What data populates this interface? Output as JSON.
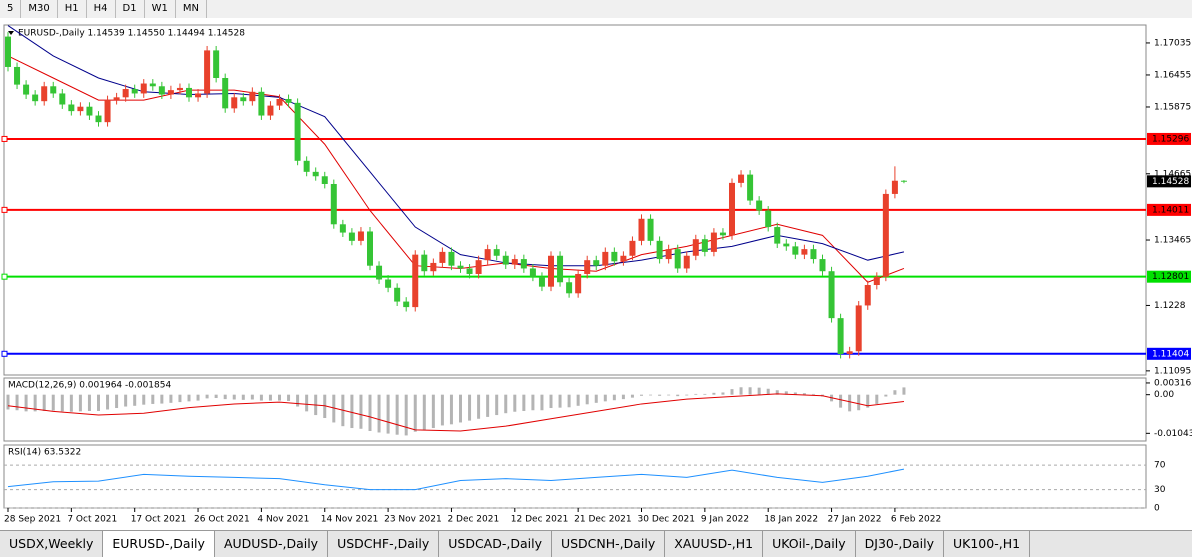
{
  "toolbar": {
    "timeframes": [
      "5",
      "M30",
      "H1",
      "H4",
      "D1",
      "W1",
      "MN"
    ]
  },
  "tabs": [
    "USDX,Weekly",
    "EURUSD-,Daily",
    "AUDUSD-,Daily",
    "USDCHF-,Daily",
    "USDCAD-,Daily",
    "USDCNH-,Daily",
    "XAUUSD-,H1",
    "UKOil-,Daily",
    "DJ30-,Daily",
    "UK100-,H1"
  ],
  "chart_data": {
    "type": "candlestick",
    "title": "EURUSD-,Daily  1.14539 1.14550 1.14494 1.14528",
    "up_color": "#e8412c",
    "down_color": "#35c435",
    "ylim": [
      1.1102,
      1.1736
    ],
    "yticks": [
      1.17035,
      1.16455,
      1.15875,
      1.14665,
      1.13465,
      1.1228,
      1.11095
    ],
    "xticks": [
      {
        "value": 0,
        "label": "28 Sep 2021"
      },
      {
        "value": 7,
        "label": "7 Oct 2021"
      },
      {
        "value": 14,
        "label": "17 Oct 2021"
      },
      {
        "value": 21,
        "label": "26 Oct 2021"
      },
      {
        "value": 28,
        "label": "4 Nov 2021"
      },
      {
        "value": 35,
        "label": "14 Nov 2021"
      },
      {
        "value": 42,
        "label": "23 Nov 2021"
      },
      {
        "value": 49,
        "label": "2 Dec 2021"
      },
      {
        "value": 56,
        "label": "12 Dec 2021"
      },
      {
        "value": 63,
        "label": "21 Dec 2021"
      },
      {
        "value": 70,
        "label": "30 Dec 2021"
      },
      {
        "value": 77,
        "label": "9 Jan 2022"
      },
      {
        "value": 84,
        "label": "18 Jan 2022"
      },
      {
        "value": 91,
        "label": "27 Jan 2022"
      },
      {
        "value": 98,
        "label": "6 Feb 2022"
      }
    ],
    "open": [
      1.1715,
      1.166,
      1.1628,
      1.161,
      1.1598,
      1.1625,
      1.1612,
      1.1592,
      1.158,
      1.1588,
      1.1572,
      1.156,
      1.16,
      1.1605,
      1.162,
      1.1612,
      1.163,
      1.1625,
      1.161,
      1.1618,
      1.1622,
      1.1605,
      1.1612,
      1.169,
      1.164,
      1.1585,
      1.1605,
      1.1598,
      1.1615,
      1.1572,
      1.159,
      1.1602,
      1.1595,
      1.149,
      1.147,
      1.1462,
      1.1448,
      1.1375,
      1.136,
      1.1345,
      1.1362,
      1.13,
      1.1275,
      1.126,
      1.1235,
      1.1225,
      1.132,
      1.129,
      1.1305,
      1.1325,
      1.13,
      1.1295,
      1.1285,
      1.131,
      1.133,
      1.1318,
      1.1302,
      1.1312,
      1.1295,
      1.128,
      1.1262,
      1.1318,
      1.127,
      1.125,
      1.1285,
      1.131,
      1.13,
      1.1325,
      1.1308,
      1.1318,
      1.1345,
      1.1385,
      1.1345,
      1.1312,
      1.133,
      1.1295,
      1.1318,
      1.1348,
      1.1325,
      1.136,
      1.1355,
      1.145,
      1.1465,
      1.1418,
      1.14,
      1.137,
      1.134,
      1.1335,
      1.132,
      1.133,
      1.1312,
      1.129,
      1.1205,
      1.114,
      1.1145,
      1.1228,
      1.1265,
      1.128,
      1.143,
      1.14539
    ],
    "high": [
      1.1723,
      1.1668,
      1.1636,
      1.1618,
      1.1633,
      1.1633,
      1.162,
      1.16,
      1.1596,
      1.1596,
      1.158,
      1.1608,
      1.1613,
      1.1628,
      1.1628,
      1.1638,
      1.1638,
      1.1633,
      1.1626,
      1.163,
      1.163,
      1.162,
      1.1698,
      1.1698,
      1.1648,
      1.1613,
      1.1613,
      1.1623,
      1.1623,
      1.1598,
      1.161,
      1.161,
      1.1603,
      1.1498,
      1.1478,
      1.147,
      1.1456,
      1.1383,
      1.1368,
      1.137,
      1.137,
      1.1308,
      1.1283,
      1.1268,
      1.1243,
      1.1328,
      1.1328,
      1.1313,
      1.1333,
      1.1333,
      1.1308,
      1.1303,
      1.1318,
      1.1338,
      1.1338,
      1.1326,
      1.132,
      1.132,
      1.1303,
      1.1288,
      1.1326,
      1.1326,
      1.1278,
      1.1293,
      1.1318,
      1.1318,
      1.1333,
      1.1333,
      1.1326,
      1.1353,
      1.1393,
      1.1393,
      1.1353,
      1.1338,
      1.1338,
      1.1326,
      1.1356,
      1.1356,
      1.1368,
      1.1368,
      1.1458,
      1.1473,
      1.1473,
      1.1426,
      1.1408,
      1.1378,
      1.1348,
      1.1343,
      1.1338,
      1.1338,
      1.132,
      1.1298,
      1.1213,
      1.1153,
      1.1236,
      1.1273,
      1.1288,
      1.1438,
      1.148,
      1.1455
    ],
    "low": [
      1.1652,
      1.162,
      1.1602,
      1.159,
      1.159,
      1.1604,
      1.1584,
      1.1572,
      1.1572,
      1.1564,
      1.1552,
      1.1552,
      1.1592,
      1.1597,
      1.1604,
      1.1604,
      1.1617,
      1.1602,
      1.1602,
      1.161,
      1.1597,
      1.1597,
      1.1604,
      1.1632,
      1.1577,
      1.1577,
      1.159,
      1.159,
      1.1564,
      1.1564,
      1.1582,
      1.1587,
      1.1482,
      1.1462,
      1.1454,
      1.144,
      1.1367,
      1.1352,
      1.1337,
      1.1337,
      1.1292,
      1.1267,
      1.1252,
      1.1227,
      1.1217,
      1.1217,
      1.1282,
      1.1282,
      1.1297,
      1.1292,
      1.1287,
      1.1277,
      1.1277,
      1.1302,
      1.131,
      1.1294,
      1.1294,
      1.1287,
      1.1272,
      1.1254,
      1.1254,
      1.1262,
      1.1242,
      1.1242,
      1.1277,
      1.1292,
      1.1292,
      1.13,
      1.13,
      1.131,
      1.1337,
      1.1337,
      1.1304,
      1.1304,
      1.1287,
      1.1287,
      1.131,
      1.1317,
      1.1317,
      1.1347,
      1.1347,
      1.1442,
      1.141,
      1.1392,
      1.1362,
      1.1332,
      1.1327,
      1.1312,
      1.1312,
      1.1304,
      1.1282,
      1.1197,
      1.1132,
      1.1132,
      1.1137,
      1.122,
      1.1257,
      1.1272,
      1.1422,
      1.14494
    ],
    "close": [
      1.166,
      1.1628,
      1.161,
      1.1598,
      1.1625,
      1.1612,
      1.1592,
      1.158,
      1.1588,
      1.1572,
      1.156,
      1.16,
      1.1605,
      1.162,
      1.1612,
      1.163,
      1.1625,
      1.161,
      1.1618,
      1.1622,
      1.1605,
      1.1612,
      1.169,
      1.164,
      1.1585,
      1.1605,
      1.1598,
      1.1615,
      1.1572,
      1.159,
      1.1602,
      1.1595,
      1.149,
      1.147,
      1.1462,
      1.1448,
      1.1375,
      1.136,
      1.1345,
      1.1362,
      1.13,
      1.1275,
      1.126,
      1.1235,
      1.1225,
      1.132,
      1.129,
      1.1305,
      1.1325,
      1.13,
      1.1295,
      1.1285,
      1.131,
      1.133,
      1.1318,
      1.1302,
      1.1312,
      1.1295,
      1.128,
      1.1262,
      1.1318,
      1.127,
      1.125,
      1.1285,
      1.131,
      1.13,
      1.1325,
      1.1308,
      1.1318,
      1.1345,
      1.1385,
      1.1345,
      1.1312,
      1.133,
      1.1295,
      1.1318,
      1.1348,
      1.1325,
      1.136,
      1.1355,
      1.145,
      1.1465,
      1.1418,
      1.14,
      1.137,
      1.134,
      1.1335,
      1.132,
      1.133,
      1.1312,
      1.129,
      1.1205,
      1.114,
      1.1145,
      1.1228,
      1.1265,
      1.128,
      1.143,
      1.14539,
      1.14528
    ],
    "levels": [
      {
        "value": 1.15296,
        "color": "#ff0000",
        "text_color": "#000000"
      },
      {
        "value": 1.14011,
        "color": "#ff0000",
        "text_color": "#000000"
      },
      {
        "value": 1.12801,
        "color": "#00e000",
        "text_color": "#000000"
      },
      {
        "value": 1.11404,
        "color": "#0000ff",
        "text_color": "#ffffff"
      }
    ],
    "moving_averages": [
      {
        "color": "#e00000",
        "x": [
          0,
          5,
          10,
          15,
          20,
          25,
          30,
          35,
          40,
          45,
          50,
          55,
          60,
          65,
          70,
          75,
          80,
          85,
          90,
          95,
          99
        ],
        "values": [
          1.168,
          1.164,
          1.16,
          1.16,
          1.1618,
          1.1618,
          1.1606,
          1.152,
          1.14,
          1.13,
          1.1295,
          1.1305,
          1.1295,
          1.129,
          1.132,
          1.1335,
          1.1355,
          1.1375,
          1.1355,
          1.127,
          1.1295
        ]
      },
      {
        "color": "#00008b",
        "x": [
          0,
          5,
          10,
          15,
          20,
          25,
          30,
          35,
          40,
          45,
          50,
          55,
          60,
          65,
          70,
          75,
          80,
          85,
          90,
          95,
          99
        ],
        "values": [
          1.1735,
          1.168,
          1.164,
          1.1615,
          1.161,
          1.1612,
          1.1605,
          1.157,
          1.147,
          1.137,
          1.132,
          1.1305,
          1.13,
          1.13,
          1.131,
          1.1325,
          1.1335,
          1.1355,
          1.134,
          1.131,
          1.1325
        ]
      }
    ],
    "macd": {
      "title": "MACD(12,26,9) 0.001964 -0.001854",
      "ylim": [
        -0.0125,
        0.0045
      ],
      "yticks": [
        0.003165,
        {
          "value": 0,
          "label": "0.00"
        },
        -0.01043
      ],
      "color": "#b4b4b4",
      "histogram": [
        -0.004,
        -0.0042,
        -0.0045,
        -0.0045,
        -0.0044,
        -0.0043,
        -0.0045,
        -0.0046,
        -0.0045,
        -0.0044,
        -0.0044,
        -0.004,
        -0.0036,
        -0.0032,
        -0.003,
        -0.0027,
        -0.0025,
        -0.0024,
        -0.0022,
        -0.002,
        -0.0018,
        -0.0016,
        -0.001,
        -0.0009,
        -0.0012,
        -0.0013,
        -0.0014,
        -0.0013,
        -0.0016,
        -0.0016,
        -0.0016,
        -0.0017,
        -0.0032,
        -0.0045,
        -0.0055,
        -0.0063,
        -0.0075,
        -0.0085,
        -0.009,
        -0.0092,
        -0.0098,
        -0.0102,
        -0.0105,
        -0.0108,
        -0.011,
        -0.01,
        -0.0095,
        -0.009,
        -0.0083,
        -0.008,
        -0.0075,
        -0.007,
        -0.0065,
        -0.006,
        -0.0055,
        -0.005,
        -0.0046,
        -0.0044,
        -0.0042,
        -0.0042,
        -0.0036,
        -0.0035,
        -0.0034,
        -0.003,
        -0.0026,
        -0.0022,
        -0.0018,
        -0.0015,
        -0.0012,
        -0.0008,
        -0.0003,
        -0.0002,
        -0.0003,
        -0.0002,
        -0.0004,
        -0.0002,
        0.0002,
        0.0002,
        0.0005,
        0.0006,
        0.0015,
        0.002,
        0.002,
        0.0019,
        0.0016,
        0.0012,
        0.0009,
        0.0006,
        0.0004,
        0.0002,
        -0.0005,
        -0.0018,
        -0.0035,
        -0.0045,
        -0.0042,
        -0.0035,
        -0.0025,
        -0.0005,
        0.0012,
        0.001964
      ],
      "signal": {
        "color": "#e00000",
        "x": [
          0,
          5,
          10,
          15,
          20,
          25,
          30,
          35,
          40,
          45,
          50,
          55,
          60,
          65,
          70,
          75,
          80,
          85,
          90,
          95,
          99
        ],
        "values": [
          -0.003,
          -0.0045,
          -0.0055,
          -0.005,
          -0.0035,
          -0.0025,
          -0.002,
          -0.003,
          -0.006,
          -0.0095,
          -0.0098,
          -0.0085,
          -0.0065,
          -0.0045,
          -0.0025,
          -0.0012,
          -0.0005,
          0.0002,
          -0.0003,
          -0.003,
          -0.001854
        ]
      }
    },
    "rsi": {
      "title": "RSI(14) 63.5322",
      "ylim": [
        0,
        103
      ],
      "yticks": [
        70,
        30,
        0
      ],
      "color": "#1e90ff",
      "x": [
        0,
        5,
        10,
        15,
        20,
        25,
        30,
        35,
        40,
        45,
        50,
        55,
        60,
        65,
        70,
        75,
        80,
        85,
        90,
        95,
        99
      ],
      "values": [
        35,
        43,
        44,
        55,
        52,
        50,
        48,
        38,
        30,
        30,
        45,
        48,
        45,
        50,
        55,
        50,
        62,
        50,
        42,
        52,
        63.5322
      ]
    }
  }
}
